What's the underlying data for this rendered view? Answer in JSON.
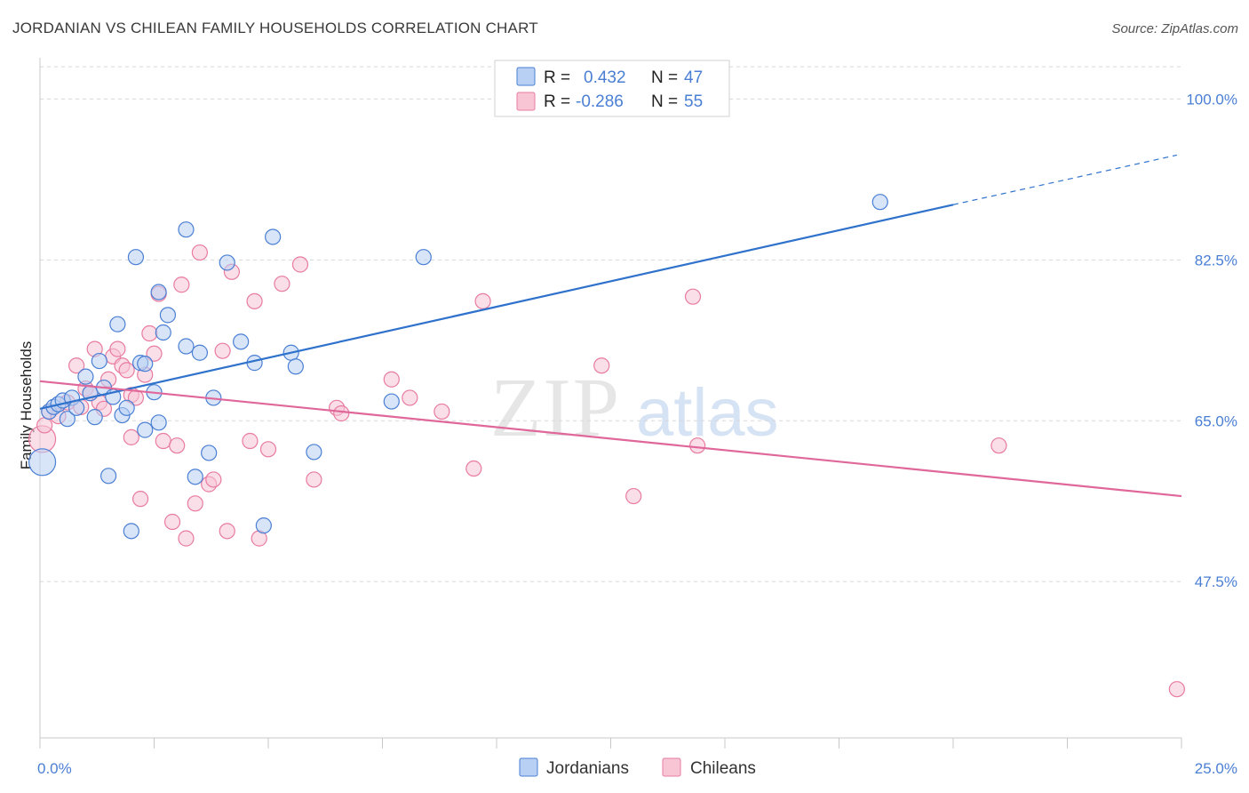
{
  "title": "JORDANIAN VS CHILEAN FAMILY HOUSEHOLDS CORRELATION CHART",
  "source": "Source: ZipAtlas.com",
  "watermark": {
    "zip": "ZIP",
    "atlas": "atlas"
  },
  "colors": {
    "blue": "#4a7fd4",
    "blue_fill": "#b8d0f3",
    "blue_line": "#2f72cc",
    "pink": "#e87ba0",
    "pink_fill": "#f8c5d5",
    "pink_line": "#e0679a",
    "grid": "#d8d8d8"
  },
  "legend": {
    "rows": [
      {
        "r_label": "R =",
        "r_value": "0.432",
        "n_label": "N =",
        "n_value": "47"
      },
      {
        "r_label": "R =",
        "r_value": "-0.286",
        "n_label": "N =",
        "n_value": "55"
      }
    ]
  },
  "bottom_legend": [
    "Jordanians",
    "Chileans"
  ],
  "chart_data": {
    "type": "scatter",
    "title": "JORDANIAN VS CHILEAN FAMILY HOUSEHOLDS CORRELATION CHART",
    "xlabel": "",
    "ylabel": "Family Households",
    "xlim": [
      0,
      25
    ],
    "ylim": [
      30.5,
      104
    ],
    "x_tick_labels": [
      "0.0%",
      "25.0%"
    ],
    "y_ticks": [
      47.5,
      65.0,
      82.5,
      100.0
    ],
    "y_tick_labels": [
      "47.5%",
      "65.0%",
      "82.5%",
      "100.0%"
    ],
    "grid": true,
    "series": [
      {
        "name": "Jordanians",
        "r": 0.432,
        "n": 47,
        "trend": {
          "x0": 0.0,
          "y0": 66.3,
          "x1": 20.0,
          "y1": 88.5,
          "dash_to_x": 24.9,
          "dash_to_y": 93.9
        },
        "points": [
          {
            "x": 0.05,
            "y": 60.5,
            "s": 2
          },
          {
            "x": 0.2,
            "y": 66.0,
            "s": 1
          },
          {
            "x": 0.3,
            "y": 66.5,
            "s": 1
          },
          {
            "x": 0.4,
            "y": 66.8,
            "s": 1
          },
          {
            "x": 0.5,
            "y": 67.2,
            "s": 1
          },
          {
            "x": 0.6,
            "y": 65.2,
            "s": 1
          },
          {
            "x": 0.7,
            "y": 67.5,
            "s": 1
          },
          {
            "x": 0.8,
            "y": 66.4,
            "s": 1
          },
          {
            "x": 1.0,
            "y": 69.8,
            "s": 1
          },
          {
            "x": 1.1,
            "y": 68.0,
            "s": 1
          },
          {
            "x": 1.2,
            "y": 65.4,
            "s": 1
          },
          {
            "x": 1.3,
            "y": 71.5,
            "s": 1
          },
          {
            "x": 1.4,
            "y": 68.6,
            "s": 1
          },
          {
            "x": 1.5,
            "y": 59.0,
            "s": 1
          },
          {
            "x": 1.6,
            "y": 67.6,
            "s": 1
          },
          {
            "x": 1.7,
            "y": 75.5,
            "s": 1
          },
          {
            "x": 1.8,
            "y": 65.6,
            "s": 1
          },
          {
            "x": 1.9,
            "y": 66.4,
            "s": 1
          },
          {
            "x": 2.0,
            "y": 53.0,
            "s": 1
          },
          {
            "x": 2.1,
            "y": 82.8,
            "s": 1
          },
          {
            "x": 2.2,
            "y": 71.3,
            "s": 1
          },
          {
            "x": 2.3,
            "y": 71.2,
            "s": 1
          },
          {
            "x": 2.3,
            "y": 64.0,
            "s": 1
          },
          {
            "x": 2.5,
            "y": 68.1,
            "s": 1
          },
          {
            "x": 2.6,
            "y": 64.8,
            "s": 1
          },
          {
            "x": 2.6,
            "y": 79.0,
            "s": 1
          },
          {
            "x": 2.7,
            "y": 74.6,
            "s": 1
          },
          {
            "x": 2.8,
            "y": 76.5,
            "s": 1
          },
          {
            "x": 3.2,
            "y": 85.8,
            "s": 1
          },
          {
            "x": 3.2,
            "y": 73.1,
            "s": 1
          },
          {
            "x": 3.4,
            "y": 58.9,
            "s": 1
          },
          {
            "x": 3.5,
            "y": 72.4,
            "s": 1
          },
          {
            "x": 3.7,
            "y": 61.5,
            "s": 1
          },
          {
            "x": 3.8,
            "y": 67.5,
            "s": 1
          },
          {
            "x": 4.1,
            "y": 82.2,
            "s": 1
          },
          {
            "x": 4.4,
            "y": 73.6,
            "s": 1
          },
          {
            "x": 4.7,
            "y": 71.3,
            "s": 1
          },
          {
            "x": 4.9,
            "y": 53.6,
            "s": 1
          },
          {
            "x": 5.1,
            "y": 85.0,
            "s": 1
          },
          {
            "x": 5.5,
            "y": 72.4,
            "s": 1
          },
          {
            "x": 5.6,
            "y": 70.9,
            "s": 1
          },
          {
            "x": 6.0,
            "y": 61.6,
            "s": 1
          },
          {
            "x": 7.7,
            "y": 67.1,
            "s": 1
          },
          {
            "x": 8.4,
            "y": 82.8,
            "s": 1
          },
          {
            "x": 18.4,
            "y": 88.8,
            "s": 1
          }
        ]
      },
      {
        "name": "Chileans",
        "r": -0.286,
        "n": 55,
        "trend": {
          "x0": 0.0,
          "y0": 69.3,
          "x1": 25.0,
          "y1": 56.8
        },
        "points": [
          {
            "x": 0.05,
            "y": 63.0,
            "s": 2
          },
          {
            "x": 0.1,
            "y": 64.5,
            "s": 1
          },
          {
            "x": 0.2,
            "y": 66.0,
            "s": 1
          },
          {
            "x": 0.4,
            "y": 65.5,
            "s": 1
          },
          {
            "x": 0.6,
            "y": 67.0,
            "s": 1
          },
          {
            "x": 0.8,
            "y": 71.0,
            "s": 1
          },
          {
            "x": 0.9,
            "y": 66.5,
            "s": 1
          },
          {
            "x": 1.0,
            "y": 68.5,
            "s": 1
          },
          {
            "x": 1.1,
            "y": 68.0,
            "s": 1
          },
          {
            "x": 1.2,
            "y": 72.8,
            "s": 1
          },
          {
            "x": 1.3,
            "y": 67.0,
            "s": 1
          },
          {
            "x": 1.4,
            "y": 66.3,
            "s": 1
          },
          {
            "x": 1.5,
            "y": 69.5,
            "s": 1
          },
          {
            "x": 1.6,
            "y": 72.0,
            "s": 1
          },
          {
            "x": 1.7,
            "y": 72.8,
            "s": 1
          },
          {
            "x": 1.8,
            "y": 71.0,
            "s": 1
          },
          {
            "x": 1.9,
            "y": 70.5,
            "s": 1
          },
          {
            "x": 2.0,
            "y": 63.2,
            "s": 1
          },
          {
            "x": 2.0,
            "y": 67.8,
            "s": 1
          },
          {
            "x": 2.1,
            "y": 67.5,
            "s": 1
          },
          {
            "x": 2.2,
            "y": 56.5,
            "s": 1
          },
          {
            "x": 2.3,
            "y": 70.0,
            "s": 1
          },
          {
            "x": 2.4,
            "y": 74.5,
            "s": 1
          },
          {
            "x": 2.5,
            "y": 72.3,
            "s": 1
          },
          {
            "x": 2.6,
            "y": 78.8,
            "s": 1
          },
          {
            "x": 2.7,
            "y": 62.8,
            "s": 1
          },
          {
            "x": 2.9,
            "y": 54.0,
            "s": 1
          },
          {
            "x": 3.0,
            "y": 62.3,
            "s": 1
          },
          {
            "x": 3.1,
            "y": 79.8,
            "s": 1
          },
          {
            "x": 3.2,
            "y": 52.2,
            "s": 1
          },
          {
            "x": 3.4,
            "y": 56.0,
            "s": 1
          },
          {
            "x": 3.5,
            "y": 83.3,
            "s": 1
          },
          {
            "x": 3.7,
            "y": 58.1,
            "s": 1
          },
          {
            "x": 3.8,
            "y": 58.6,
            "s": 1
          },
          {
            "x": 4.0,
            "y": 72.6,
            "s": 1
          },
          {
            "x": 4.1,
            "y": 53.0,
            "s": 1
          },
          {
            "x": 4.2,
            "y": 81.2,
            "s": 1
          },
          {
            "x": 4.6,
            "y": 62.8,
            "s": 1
          },
          {
            "x": 4.7,
            "y": 78.0,
            "s": 1
          },
          {
            "x": 4.8,
            "y": 52.2,
            "s": 1
          },
          {
            "x": 5.0,
            "y": 61.9,
            "s": 1
          },
          {
            "x": 5.3,
            "y": 79.9,
            "s": 1
          },
          {
            "x": 5.7,
            "y": 82.0,
            "s": 1
          },
          {
            "x": 6.0,
            "y": 58.6,
            "s": 1
          },
          {
            "x": 6.5,
            "y": 66.4,
            "s": 1
          },
          {
            "x": 6.6,
            "y": 65.8,
            "s": 1
          },
          {
            "x": 7.7,
            "y": 69.5,
            "s": 1
          },
          {
            "x": 8.1,
            "y": 67.5,
            "s": 1
          },
          {
            "x": 8.8,
            "y": 66.0,
            "s": 1
          },
          {
            "x": 9.5,
            "y": 59.8,
            "s": 1
          },
          {
            "x": 9.7,
            "y": 78.0,
            "s": 1
          },
          {
            "x": 12.3,
            "y": 71.0,
            "s": 1
          },
          {
            "x": 13.0,
            "y": 56.8,
            "s": 1
          },
          {
            "x": 14.3,
            "y": 78.5,
            "s": 1
          },
          {
            "x": 14.4,
            "y": 62.3,
            "s": 1
          },
          {
            "x": 21.0,
            "y": 62.3,
            "s": 1
          },
          {
            "x": 24.9,
            "y": 35.8,
            "s": 1
          }
        ]
      }
    ]
  }
}
